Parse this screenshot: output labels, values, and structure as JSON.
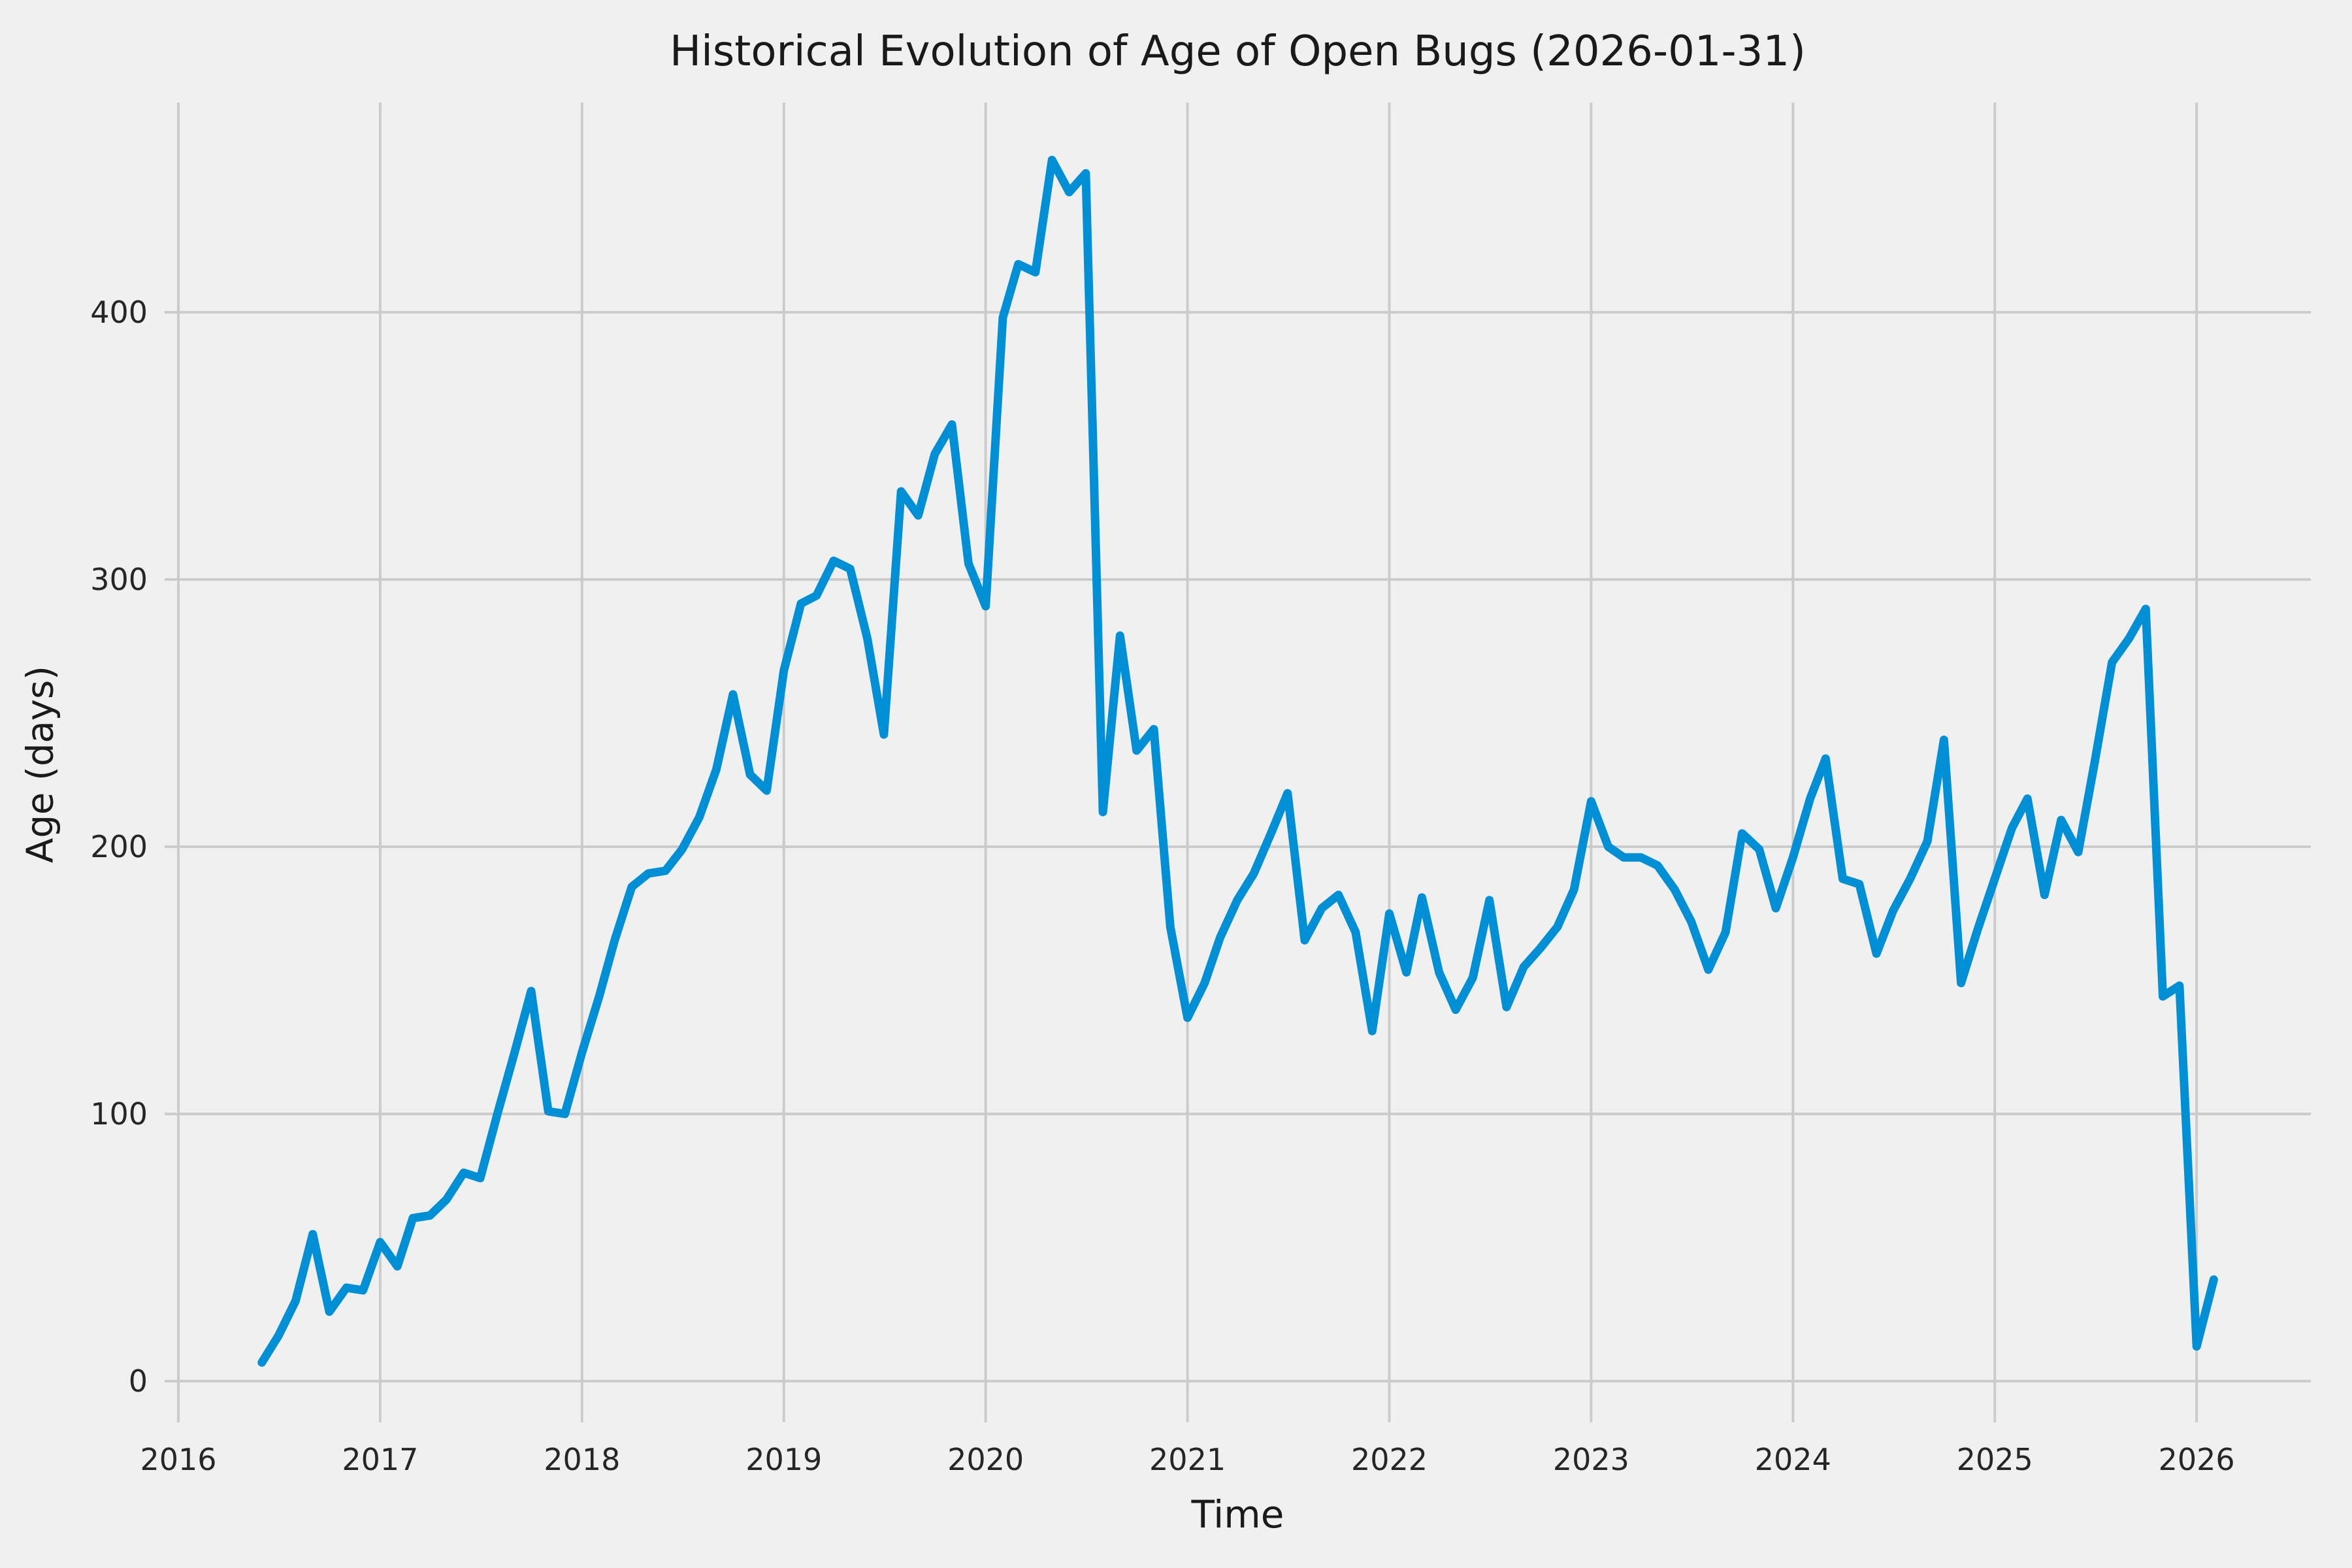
{
  "chart_data": {
    "type": "line",
    "title": "Historical Evolution of Age of Open Bugs (2026-01-31)",
    "xlabel": "Time",
    "ylabel": "Age (days)",
    "series_name": "Age of open bugs",
    "line_color": "#008fd5",
    "grid_color": "#cbcbcb",
    "background_color": "#f0f0f0",
    "x_tick_labels": [
      "2016",
      "2017",
      "2018",
      "2019",
      "2020",
      "2021",
      "2022",
      "2023",
      "2024",
      "2025",
      "2026"
    ],
    "y_tick_labels": [
      "0",
      "100",
      "200",
      "300",
      "400"
    ],
    "x_ticks": [
      2016,
      2017,
      2018,
      2019,
      2020,
      2021,
      2022,
      2023,
      2024,
      2025,
      2026
    ],
    "y_ticks": [
      0,
      100,
      200,
      300,
      400
    ],
    "xlim": [
      2015.932,
      2026.566
    ],
    "ylim": [
      -15.4,
      478.5
    ],
    "grid": true,
    "legend": false,
    "x": [
      "2016-05",
      "2016-06",
      "2016-07",
      "2016-08",
      "2016-09",
      "2016-10",
      "2016-11",
      "2016-12",
      "2017-01",
      "2017-02",
      "2017-03",
      "2017-04",
      "2017-05",
      "2017-06",
      "2017-07",
      "2017-08",
      "2017-09",
      "2017-10",
      "2017-11",
      "2017-12",
      "2018-01",
      "2018-02",
      "2018-03",
      "2018-04",
      "2018-05",
      "2018-06",
      "2018-07",
      "2018-08",
      "2018-09",
      "2018-10",
      "2018-11",
      "2018-12",
      "2019-01",
      "2019-02",
      "2019-03",
      "2019-04",
      "2019-05",
      "2019-06",
      "2019-07",
      "2019-08",
      "2019-09",
      "2019-10",
      "2019-11",
      "2019-12",
      "2020-01",
      "2020-02",
      "2020-03",
      "2020-04",
      "2020-05",
      "2020-06",
      "2020-07",
      "2020-08",
      "2020-09",
      "2020-10",
      "2020-11",
      "2020-12",
      "2021-01",
      "2021-02",
      "2021-03",
      "2021-04",
      "2021-05",
      "2021-06",
      "2021-07",
      "2021-08",
      "2021-09",
      "2021-10",
      "2021-11",
      "2021-12",
      "2022-01",
      "2022-02",
      "2022-03",
      "2022-04",
      "2022-05",
      "2022-06",
      "2022-07",
      "2022-08",
      "2022-09",
      "2022-10",
      "2022-11",
      "2022-12",
      "2023-01",
      "2023-02",
      "2023-03",
      "2023-04",
      "2023-05",
      "2023-06",
      "2023-07",
      "2023-08",
      "2023-09",
      "2023-10",
      "2023-11",
      "2023-12",
      "2024-01",
      "2024-02",
      "2024-03",
      "2024-04",
      "2024-05",
      "2024-06",
      "2024-07",
      "2024-08",
      "2024-09",
      "2024-10",
      "2024-11",
      "2024-12",
      "2025-01",
      "2025-02",
      "2025-03",
      "2025-04",
      "2025-05",
      "2025-06",
      "2025-07",
      "2025-08",
      "2025-09",
      "2025-10",
      "2025-11",
      "2025-12",
      "2026-01"
    ],
    "values": [
      7,
      17,
      30,
      55,
      26,
      35,
      34,
      52,
      43,
      61,
      62,
      68,
      78,
      76,
      100,
      123,
      146,
      101,
      100,
      123,
      144,
      165,
      185,
      190,
      191,
      199,
      211,
      229,
      257,
      227,
      221,
      266,
      291,
      294,
      307,
      304,
      278,
      242,
      333,
      324,
      347,
      358,
      306,
      290,
      398,
      418,
      415,
      457,
      445,
      452,
      213,
      279,
      236,
      244,
      170,
      136,
      149,
      166,
      180,
      190,
      205,
      220,
      165,
      177,
      182,
      168,
      131,
      175,
      153,
      181,
      153,
      139,
      151,
      180,
      140,
      155,
      162,
      170,
      184,
      217,
      200,
      196,
      196,
      193,
      184,
      172,
      154,
      168,
      205,
      199,
      177,
      196,
      218,
      233,
      188,
      186,
      160,
      176,
      188,
      202,
      240,
      149,
      169,
      188,
      207,
      218,
      182,
      210,
      198,
      232,
      269,
      278,
      289,
      144,
      148,
      13,
      38
    ]
  }
}
